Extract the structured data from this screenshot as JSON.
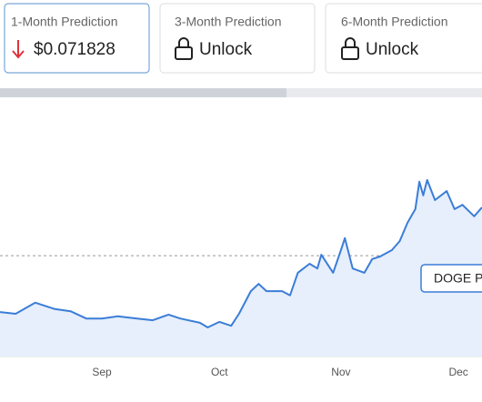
{
  "cards": [
    {
      "title": "1-Month Prediction",
      "value": "$0.071828"
    },
    {
      "title": "3-Month Prediction",
      "value": "Unlock"
    },
    {
      "title": "6-Month Prediction",
      "value": "Unlock"
    }
  ],
  "chart_data": {
    "type": "line",
    "x": [
      -26,
      -22,
      -17,
      -12,
      -8,
      -4,
      0,
      4,
      9,
      13,
      17,
      20,
      25,
      27,
      30,
      33,
      35,
      38,
      40,
      42,
      46,
      48,
      50,
      53,
      55,
      56,
      59,
      61,
      62,
      64,
      67,
      69,
      71,
      74,
      76,
      78,
      80,
      81,
      82,
      83,
      85,
      88,
      90,
      92,
      95,
      97
    ],
    "series": [
      {
        "name": "DOGE P",
        "color": "#3b7dd8",
        "values": [
          0.104,
          0.1,
          0.126,
          0.111,
          0.106,
          0.089,
          0.089,
          0.094,
          0.089,
          0.085,
          0.098,
          0.089,
          0.079,
          0.068,
          0.081,
          0.072,
          0.1,
          0.153,
          0.17,
          0.153,
          0.153,
          0.143,
          0.196,
          0.217,
          0.206,
          0.238,
          0.196,
          0.249,
          0.277,
          0.206,
          0.196,
          0.228,
          0.234,
          0.249,
          0.27,
          0.313,
          0.345,
          0.409,
          0.377,
          0.413,
          0.366,
          0.387,
          0.345,
          0.355,
          0.328,
          0.349
        ]
      }
    ],
    "xlim": [
      -26,
      97
    ],
    "xticks": [
      {
        "value": 0,
        "label": "Sep"
      },
      {
        "value": 30,
        "label": "Oct"
      },
      {
        "value": 61,
        "label": "Nov"
      },
      {
        "value": 91,
        "label": "Dec"
      }
    ],
    "ylim": [
      0,
      0.6
    ],
    "reference_line": 0.236
  }
}
